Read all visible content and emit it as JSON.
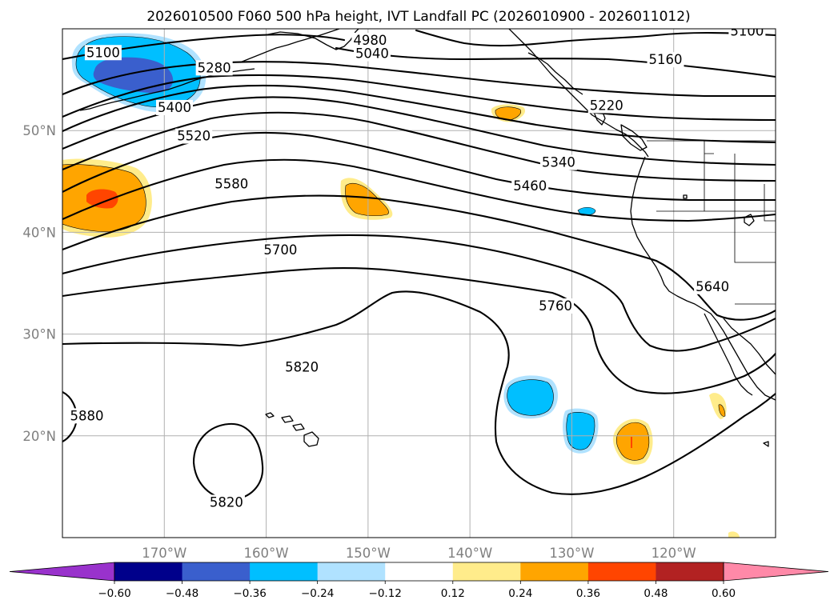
{
  "title": "2026010500 F060 500 hPa height, IVT Landfall PC (2026010900 - 2026011012)",
  "map": {
    "lon_range": [
      -180,
      -110
    ],
    "lat_range": [
      10,
      60
    ],
    "lat_ticks": [
      {
        "value": 20,
        "label": "20°N"
      },
      {
        "value": 30,
        "label": "30°N"
      },
      {
        "value": 40,
        "label": "40°N"
      },
      {
        "value": 50,
        "label": "50°N"
      }
    ],
    "lon_ticks": [
      {
        "value": -170,
        "label": "170°W"
      },
      {
        "value": -160,
        "label": "160°W"
      },
      {
        "value": -150,
        "label": "150°W"
      },
      {
        "value": -140,
        "label": "140°W"
      },
      {
        "value": -130,
        "label": "130°W"
      },
      {
        "value": -120,
        "label": "120°W"
      }
    ],
    "grid": true
  },
  "contour_labels": [
    {
      "text": "5100",
      "lon": -176.0,
      "lat": 57.7
    },
    {
      "text": "4980",
      "lon": -149.8,
      "lat": 58.9
    },
    {
      "text": "5040",
      "lon": -149.6,
      "lat": 57.6
    },
    {
      "text": "5100",
      "lon": -112.8,
      "lat": 59.8
    },
    {
      "text": "5160",
      "lon": -120.8,
      "lat": 57.0
    },
    {
      "text": "5280",
      "lon": -165.1,
      "lat": 56.2
    },
    {
      "text": "5400",
      "lon": -169.0,
      "lat": 52.3
    },
    {
      "text": "5220",
      "lon": -126.6,
      "lat": 52.5
    },
    {
      "text": "5520",
      "lon": -167.1,
      "lat": 49.5
    },
    {
      "text": "5340",
      "lon": -131.3,
      "lat": 46.9
    },
    {
      "text": "5460",
      "lon": -134.1,
      "lat": 44.6
    },
    {
      "text": "5580",
      "lon": -163.4,
      "lat": 44.8
    },
    {
      "text": "5700",
      "lon": -158.6,
      "lat": 38.3
    },
    {
      "text": "5640",
      "lon": -116.2,
      "lat": 34.7
    },
    {
      "text": "5760",
      "lon": -131.6,
      "lat": 32.8
    },
    {
      "text": "5820",
      "lon": -156.5,
      "lat": 26.8
    },
    {
      "text": "5880",
      "lon": -177.6,
      "lat": 22.0
    },
    {
      "text": "5820",
      "lon": -163.9,
      "lat": 13.5
    }
  ],
  "colorbar": {
    "ticks": [
      "−0.60",
      "−0.48",
      "−0.36",
      "−0.24",
      "−0.12",
      "0.12",
      "0.24",
      "0.36",
      "0.48",
      "0.60"
    ],
    "colors": [
      "#9932cc",
      "#00008b",
      "#3a5fcd",
      "#00bfff",
      "#b0e2ff",
      "#ffffff",
      "#ffec8b",
      "#ffa500",
      "#ff4500",
      "#b22222",
      "#ff89a8"
    ]
  }
}
